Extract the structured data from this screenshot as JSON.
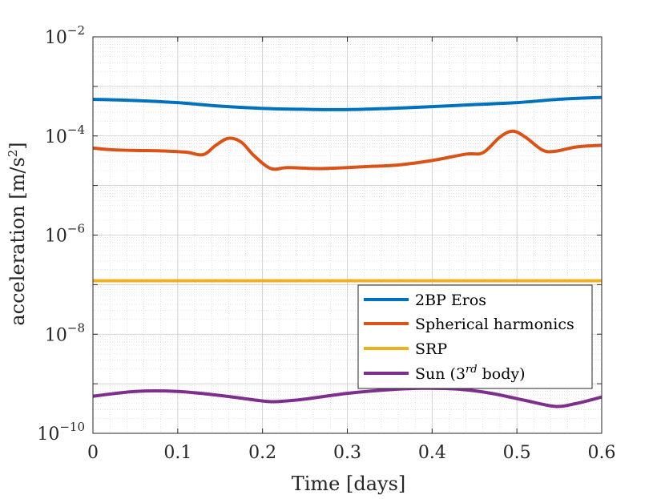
{
  "chart_data": {
    "type": "line",
    "xlabel": "Time [days]",
    "ylabel_main": "acceleration [m/s",
    "ylabel_sup": "2",
    "ylabel_tail": "]",
    "yscale": "log",
    "xlim": [
      0,
      0.6
    ],
    "ylim": [
      1e-10,
      0.01
    ],
    "grid": true,
    "minor_grid": true,
    "legend_position": "bottom-right",
    "x_ticks": [
      {
        "value": 0,
        "label": "0"
      },
      {
        "value": 0.1,
        "label": "0.1"
      },
      {
        "value": 0.2,
        "label": "0.2"
      },
      {
        "value": 0.3,
        "label": "0.3"
      },
      {
        "value": 0.4,
        "label": "0.4"
      },
      {
        "value": 0.5,
        "label": "0.5"
      },
      {
        "value": 0.6,
        "label": "0.6"
      }
    ],
    "y_ticks": [
      {
        "exponent": -10,
        "base": "10",
        "sup": "−10"
      },
      {
        "exponent": -8,
        "base": "10",
        "sup": "−8"
      },
      {
        "exponent": -6,
        "base": "10",
        "sup": "−6"
      },
      {
        "exponent": -4,
        "base": "10",
        "sup": "−4"
      },
      {
        "exponent": -2,
        "base": "10",
        "sup": "−2"
      }
    ],
    "series": [
      {
        "name": "2BP Eros",
        "color": "#0072bd",
        "x": [
          0,
          0.05,
          0.1,
          0.15,
          0.2,
          0.25,
          0.3,
          0.35,
          0.4,
          0.45,
          0.5,
          0.55,
          0.6
        ],
        "y": [
          0.00055,
          0.00052,
          0.00047,
          0.0004,
          0.00036,
          0.000345,
          0.00034,
          0.00036,
          0.00039,
          0.00043,
          0.00047,
          0.00055,
          0.0006
        ]
      },
      {
        "name": "Spherical harmonics",
        "color": "#d95319",
        "x": [
          0,
          0.02,
          0.05,
          0.08,
          0.11,
          0.13,
          0.145,
          0.16,
          0.175,
          0.19,
          0.21,
          0.23,
          0.27,
          0.32,
          0.36,
          0.4,
          0.44,
          0.46,
          0.48,
          0.495,
          0.51,
          0.53,
          0.545,
          0.57,
          0.6
        ],
        "y": [
          5.7e-05,
          5.3e-05,
          5.1e-05,
          5e-05,
          4.7e-05,
          4.2e-05,
          6.5e-05,
          9e-05,
          7.5e-05,
          4e-05,
          2.2e-05,
          2.3e-05,
          2.2e-05,
          2.4e-05,
          2.6e-05,
          3.2e-05,
          4.3e-05,
          4.6e-05,
          9.5e-05,
          0.000125,
          9.5e-05,
          5.2e-05,
          4.9e-05,
          6e-05,
          6.5e-05
        ]
      },
      {
        "name": "SRP",
        "color": "#edb120",
        "x": [
          0,
          0.6
        ],
        "y": [
          1.2e-07,
          1.2e-07
        ]
      },
      {
        "name": "Sun (3rd body)",
        "name_main": "Sun (3",
        "name_sup": "rd",
        "name_tail": " body)",
        "color": "#7e2f8e",
        "x": [
          0,
          0.05,
          0.1,
          0.15,
          0.2,
          0.22,
          0.25,
          0.3,
          0.35,
          0.39,
          0.43,
          0.47,
          0.51,
          0.545,
          0.57,
          0.6
        ],
        "y": [
          5.6e-10,
          7e-10,
          7e-10,
          5.8e-10,
          4.5e-10,
          4.4e-10,
          4.9e-10,
          6.4e-10,
          7.6e-10,
          8.1e-10,
          7.8e-10,
          6.4e-10,
          4.6e-10,
          3.5e-10,
          4e-10,
          5.4e-10
        ]
      }
    ]
  }
}
